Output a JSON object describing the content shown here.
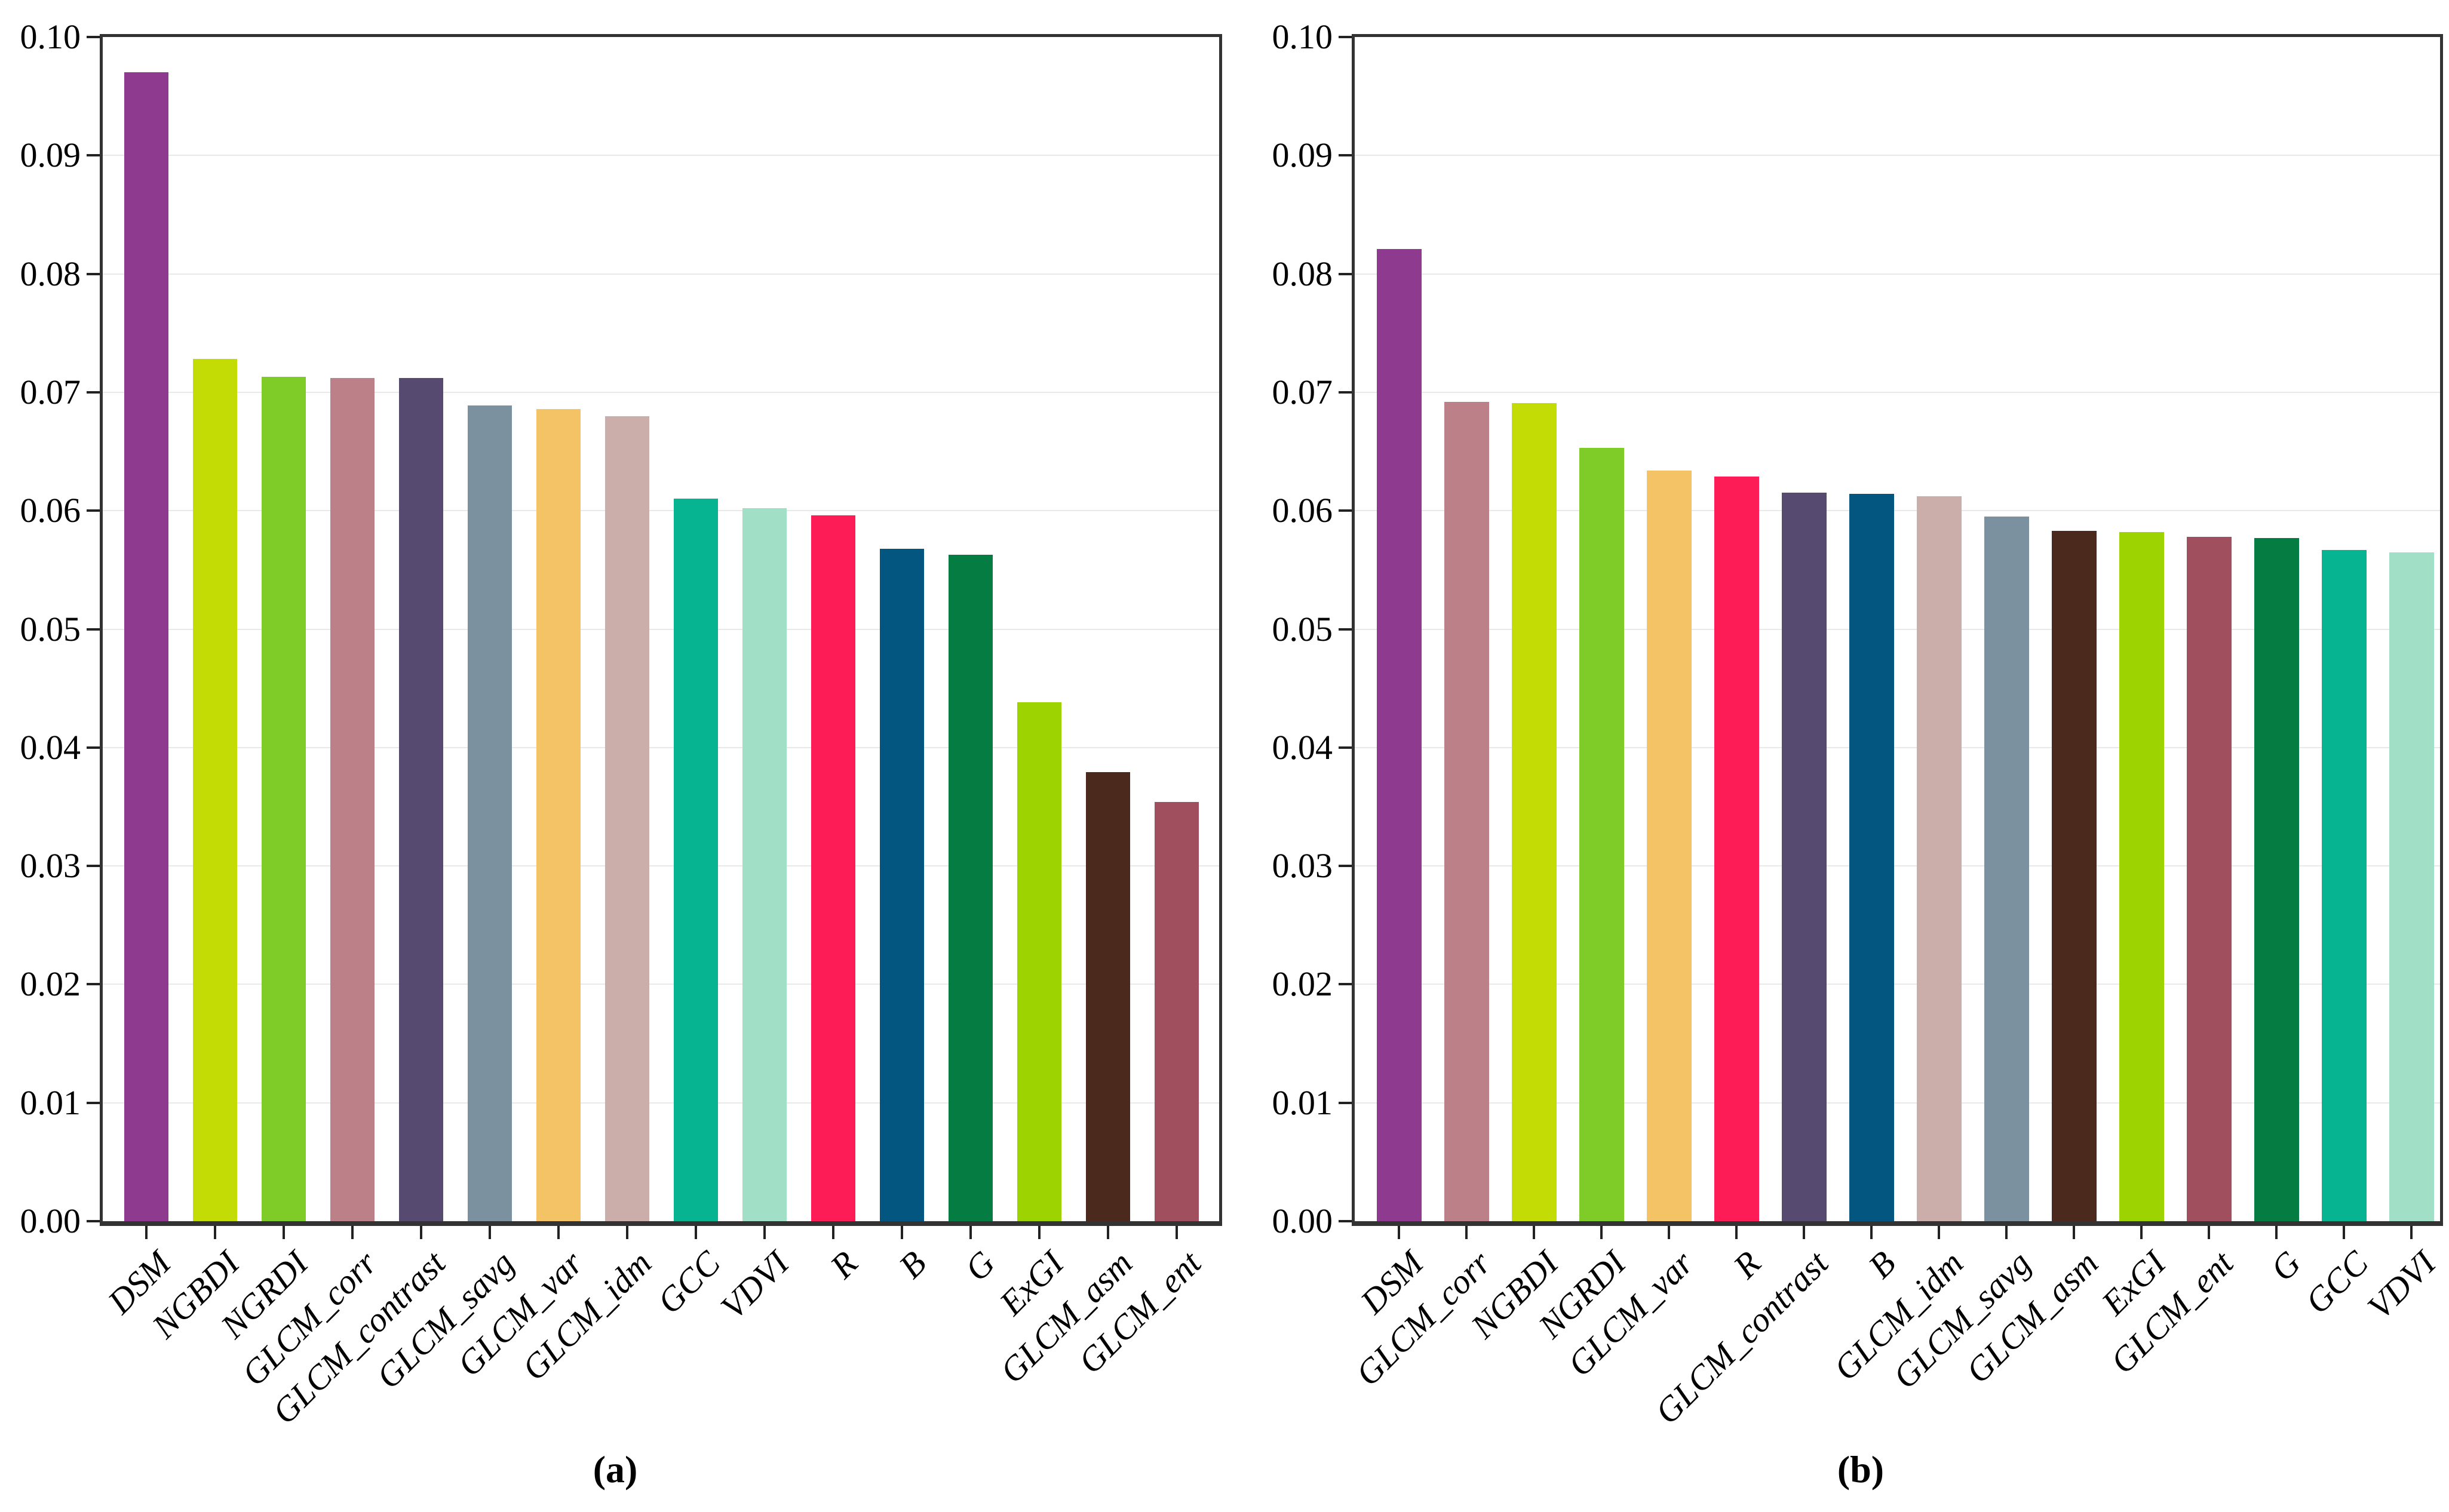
{
  "figure": {
    "background": "#ffffff",
    "axis_color": "#333333",
    "grid_color": "#e9e9e9",
    "captions": {
      "a": "(a)",
      "b": "(b)"
    }
  },
  "y_axis": {
    "min": 0.0,
    "max": 0.1,
    "tick_step": 0.01,
    "tick_labels": [
      "0.00",
      "0.01",
      "0.02",
      "0.03",
      "0.04",
      "0.05",
      "0.06",
      "0.07",
      "0.08",
      "0.09",
      "0.10"
    ]
  },
  "feature_colors": {
    "DSM": "#8E3B8F",
    "NGBDI": "#C3DC06",
    "NGRDI": "#7FCC29",
    "GLCM_corr": "#BC8188",
    "GLCM_contrast": "#564A70",
    "GLCM_savg": "#7B919F",
    "GLCM_var": "#F3C366",
    "GLCM_idm": "#CBADA9",
    "GCC": "#06B491",
    "VDVI": "#A1E0C7",
    "R": "#FD1C55",
    "B": "#03567F",
    "G": "#047C42",
    "ExGI": "#9CD301",
    "GLCM_asm": "#4B291D",
    "GLCM_ent": "#9F4F5E"
  },
  "chart_data": [
    {
      "type": "bar",
      "panel_label": "(a)",
      "categories": [
        "DSM",
        "NGBDI",
        "NGRDI",
        "GLCM_corr",
        "GLCM_contrast",
        "GLCM_savg",
        "GLCM_var",
        "GLCM_idm",
        "GCC",
        "VDVI",
        "R",
        "B",
        "G",
        "ExGI",
        "GLCM_asm",
        "GLCM_ent"
      ],
      "values": [
        0.097,
        0.0728,
        0.0713,
        0.0712,
        0.0712,
        0.0689,
        0.0686,
        0.068,
        0.061,
        0.0602,
        0.0596,
        0.0568,
        0.0563,
        0.0438,
        0.0379,
        0.0354
      ],
      "ylim": [
        0.0,
        0.1
      ],
      "yticks": [
        0.0,
        0.01,
        0.02,
        0.03,
        0.04,
        0.05,
        0.06,
        0.07,
        0.08,
        0.09,
        0.1
      ],
      "grid": "horizontal",
      "x_tick_rotation": 45,
      "xlabel": "",
      "ylabel": ""
    },
    {
      "type": "bar",
      "panel_label": "(b)",
      "categories": [
        "DSM",
        "GLCM_corr",
        "NGBDI",
        "NGRDI",
        "GLCM_var",
        "R",
        "GLCM_contrast",
        "B",
        "GLCM_idm",
        "GLCM_savg",
        "GLCM_asm",
        "ExGI",
        "GLCM_ent",
        "G",
        "GCC",
        "VDVI"
      ],
      "values": [
        0.0821,
        0.0692,
        0.0691,
        0.0653,
        0.0634,
        0.0629,
        0.0615,
        0.0614,
        0.0612,
        0.0595,
        0.0583,
        0.0582,
        0.0578,
        0.0577,
        0.0567,
        0.0565
      ],
      "ylim": [
        0.0,
        0.1
      ],
      "yticks": [
        0.0,
        0.01,
        0.02,
        0.03,
        0.04,
        0.05,
        0.06,
        0.07,
        0.08,
        0.09,
        0.1
      ],
      "grid": "horizontal",
      "x_tick_rotation": 45,
      "xlabel": "",
      "ylabel": ""
    }
  ]
}
